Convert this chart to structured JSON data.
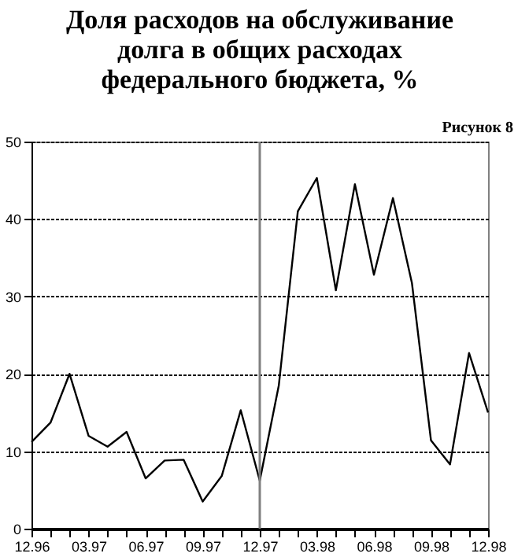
{
  "chart_data": {
    "type": "line",
    "title": [
      "Доля расходов на обслуживание",
      "долга в общих расходах",
      "федерального бюджета, %"
    ],
    "annotations": [
      "Рисунок 8"
    ],
    "categories": [
      "12.96",
      null,
      null,
      "03.97",
      null,
      null,
      "06.97",
      null,
      null,
      "09.97",
      null,
      null,
      "12.97",
      null,
      null,
      "03.98",
      null,
      null,
      "06.98",
      null,
      null,
      "09.98",
      null,
      null,
      "12.98"
    ],
    "series": [
      {
        "color": "#000000",
        "values": [
          11.2,
          13.7,
          20,
          12,
          10.6,
          12.5,
          6.5,
          8.8,
          8.9,
          3.5,
          6.8,
          15.3,
          6.2,
          18.5,
          41,
          45.3,
          30.8,
          44.5,
          32.8,
          42.7,
          31.7,
          11.4,
          8.3,
          22.7,
          15
        ]
      }
    ],
    "ylim": [
      0,
      50
    ],
    "yticks": [
      0,
      10,
      20,
      30,
      40,
      50
    ],
    "grid": "y",
    "ref_lines": [
      {
        "axis": "x",
        "value": "12.97",
        "color": "#808080"
      }
    ]
  }
}
